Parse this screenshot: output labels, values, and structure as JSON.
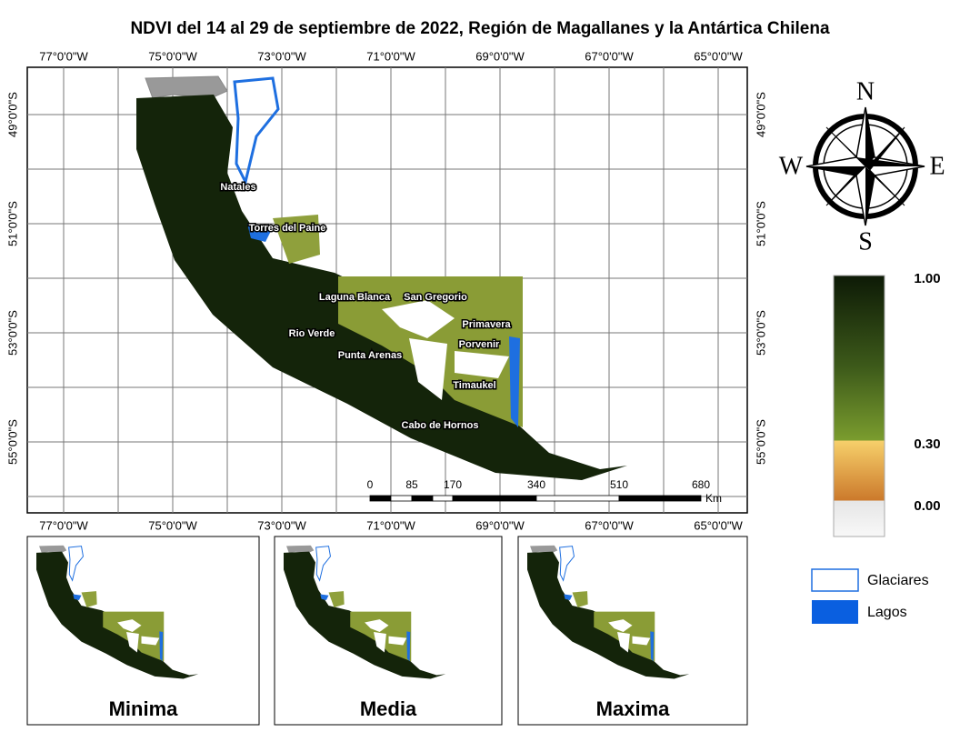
{
  "title": "NDVI del 14 al 29 de septiembre de 2022, Región de Magallanes y la Antártica Chilena",
  "map": {
    "longitude_labels": [
      "77°0'0\"W",
      "75°0'0\"W",
      "73°0'0\"W",
      "71°0'0\"W",
      "69°0'0\"W",
      "67°0'0\"W",
      "65°0'0\"W"
    ],
    "latitude_labels": [
      "49°0'0\"S",
      "51°0'0\"S",
      "53°0'0\"S",
      "55°0'0\"S"
    ],
    "places": [
      "Natales",
      "Torres del Paine",
      "Laguna Blanca",
      "San Gregorio",
      "Primavera",
      "Rio Verde",
      "Porvenir",
      "Punta Arenas",
      "Timaukel",
      "Cabo de Hornos"
    ],
    "scale_bar": {
      "labels": [
        "0",
        "85",
        "170",
        "340",
        "510",
        "680"
      ],
      "unit": "Km"
    }
  },
  "compass": {
    "north": "N",
    "west": "W",
    "east": "E",
    "south": "S"
  },
  "legend": {
    "ndvi_labels": [
      "1.00",
      "0.30",
      "0.00"
    ],
    "items": [
      "Glaciares",
      "Lagos"
    ]
  },
  "insets": [
    "Minima",
    "Media",
    "Maxima"
  ]
}
